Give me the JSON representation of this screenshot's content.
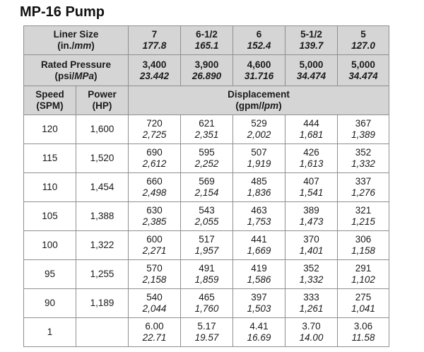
{
  "title": "MP-16 Pump",
  "liner": {
    "label_line1": "Liner Size",
    "label_line2_a": "(in./",
    "label_line2_b": "mm",
    "label_line2_c": ")",
    "sizes": [
      {
        "inch": "7",
        "mm": "177.8"
      },
      {
        "inch": "6-1/2",
        "mm": "165.1"
      },
      {
        "inch": "6",
        "mm": "152.4"
      },
      {
        "inch": "5-1/2",
        "mm": "139.7"
      },
      {
        "inch": "5",
        "mm": "127.0"
      }
    ]
  },
  "pressure": {
    "label_line1": "Rated Pressure",
    "label_line2_a": "(psi/",
    "label_line2_b": "MPa",
    "label_line2_c": ")",
    "values": [
      {
        "psi": "3,400",
        "mpa": "23.442"
      },
      {
        "psi": "3,900",
        "mpa": "26.890"
      },
      {
        "psi": "4,600",
        "mpa": "31.716"
      },
      {
        "psi": "5,000",
        "mpa": "34.474"
      },
      {
        "psi": "5,000",
        "mpa": "34.474"
      }
    ]
  },
  "headers": {
    "speed_line1": "Speed",
    "speed_line2": "(SPM)",
    "power_line1": "Power",
    "power_line2": "(HP)",
    "disp_line1": "Displacement",
    "disp_line2_a": "(gpm/",
    "disp_line2_b": "lpm",
    "disp_line2_c": ")"
  },
  "rows": [
    {
      "speed": "120",
      "power": "1,600",
      "gpm": [
        "720",
        "621",
        "529",
        "444",
        "367"
      ],
      "lpm": [
        "2,725",
        "2,351",
        "2,002",
        "1,681",
        "1,389"
      ]
    },
    {
      "speed": "115",
      "power": "1,520",
      "gpm": [
        "690",
        "595",
        "507",
        "426",
        "352"
      ],
      "lpm": [
        "2,612",
        "2,252",
        "1,919",
        "1,613",
        "1,332"
      ]
    },
    {
      "speed": "110",
      "power": "1,454",
      "gpm": [
        "660",
        "569",
        "485",
        "407",
        "337"
      ],
      "lpm": [
        "2,498",
        "2,154",
        "1,836",
        "1,541",
        "1,276"
      ]
    },
    {
      "speed": "105",
      "power": "1,388",
      "gpm": [
        "630",
        "543",
        "463",
        "389",
        "321"
      ],
      "lpm": [
        "2,385",
        "2,055",
        "1,753",
        "1,473",
        "1,215"
      ]
    },
    {
      "speed": "100",
      "power": "1,322",
      "gpm": [
        "600",
        "517",
        "441",
        "370",
        "306"
      ],
      "lpm": [
        "2,271",
        "1,957",
        "1,669",
        "1,401",
        "1,158"
      ]
    },
    {
      "speed": "95",
      "power": "1,255",
      "gpm": [
        "570",
        "491",
        "419",
        "352",
        "291"
      ],
      "lpm": [
        "2,158",
        "1,859",
        "1,586",
        "1,332",
        "1,102"
      ]
    },
    {
      "speed": "90",
      "power": "1,189",
      "gpm": [
        "540",
        "465",
        "397",
        "333",
        "275"
      ],
      "lpm": [
        "2,044",
        "1,760",
        "1,503",
        "1,261",
        "1,041"
      ]
    },
    {
      "speed": "1",
      "power": "",
      "gpm": [
        "6.00",
        "5.17",
        "4.41",
        "3.70",
        "3.06"
      ],
      "lpm": [
        "22.71",
        "19.57",
        "16.69",
        "14.00",
        "11.58"
      ]
    }
  ]
}
